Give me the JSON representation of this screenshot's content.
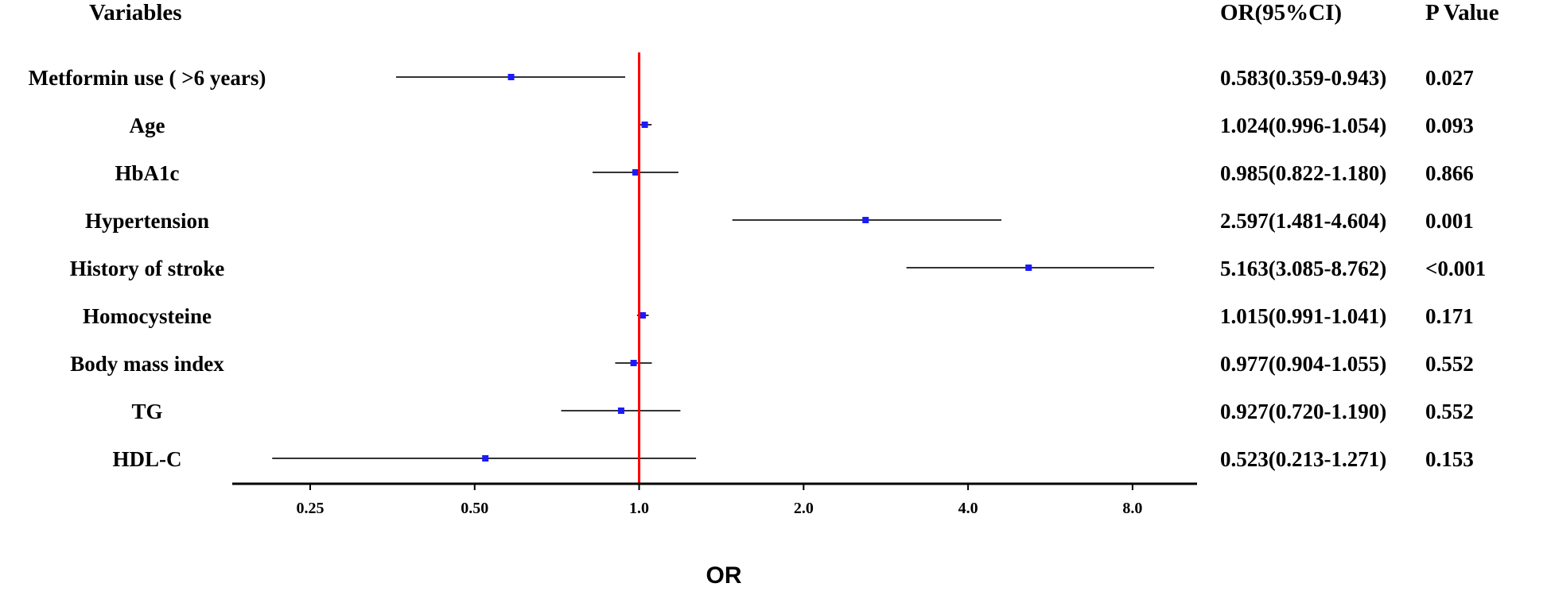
{
  "chart_data": {
    "type": "forest",
    "scale": "log2",
    "xlabel": "OR",
    "xlim": [
      0.18,
      10.5
    ],
    "xticks": [
      {
        "value": 0.25,
        "label": "0.25"
      },
      {
        "value": 0.5,
        "label": "0.50"
      },
      {
        "value": 1.0,
        "label": "1.0"
      },
      {
        "value": 2.0,
        "label": "2.0"
      },
      {
        "value": 4.0,
        "label": "4.0"
      },
      {
        "value": 8.0,
        "label": "8.0"
      }
    ],
    "reference_line": 1.0,
    "headers": {
      "variables": "Variables",
      "or_ci": "OR(95%CI)",
      "p_value": "P Value"
    },
    "rows": [
      {
        "variable": "Metformin use ( >6 years)",
        "or": 0.583,
        "lower": 0.359,
        "upper": 0.943,
        "or_ci": "0.583(0.359-0.943)",
        "p": "0.027"
      },
      {
        "variable": "Age",
        "or": 1.024,
        "lower": 0.996,
        "upper": 1.054,
        "or_ci": "1.024(0.996-1.054)",
        "p": "0.093"
      },
      {
        "variable": "HbA1c",
        "or": 0.985,
        "lower": 0.822,
        "upper": 1.18,
        "or_ci": "0.985(0.822-1.180)",
        "p": "0.866"
      },
      {
        "variable": "Hypertension",
        "or": 2.597,
        "lower": 1.481,
        "upper": 4.604,
        "or_ci": "2.597(1.481-4.604)",
        "p": "0.001"
      },
      {
        "variable": "History of stroke",
        "or": 5.163,
        "lower": 3.085,
        "upper": 8.762,
        "or_ci": "5.163(3.085-8.762)",
        "p": "<0.001"
      },
      {
        "variable": "Homocysteine",
        "or": 1.015,
        "lower": 0.991,
        "upper": 1.041,
        "or_ci": "1.015(0.991-1.041)",
        "p": "0.171"
      },
      {
        "variable": "Body mass index",
        "or": 0.977,
        "lower": 0.904,
        "upper": 1.055,
        "or_ci": "0.977(0.904-1.055)",
        "p": "0.552"
      },
      {
        "variable": "TG",
        "or": 0.927,
        "lower": 0.72,
        "upper": 1.19,
        "or_ci": "0.927(0.720-1.190)",
        "p": "0.552"
      },
      {
        "variable": "HDL-C",
        "or": 0.523,
        "lower": 0.213,
        "upper": 1.271,
        "or_ci": "0.523(0.213-1.271)",
        "p": "0.153"
      }
    ],
    "colors": {
      "point": "#1a1aff",
      "ci_line": "#333333",
      "reference_line": "#ff0000",
      "axis": "#000000"
    }
  }
}
